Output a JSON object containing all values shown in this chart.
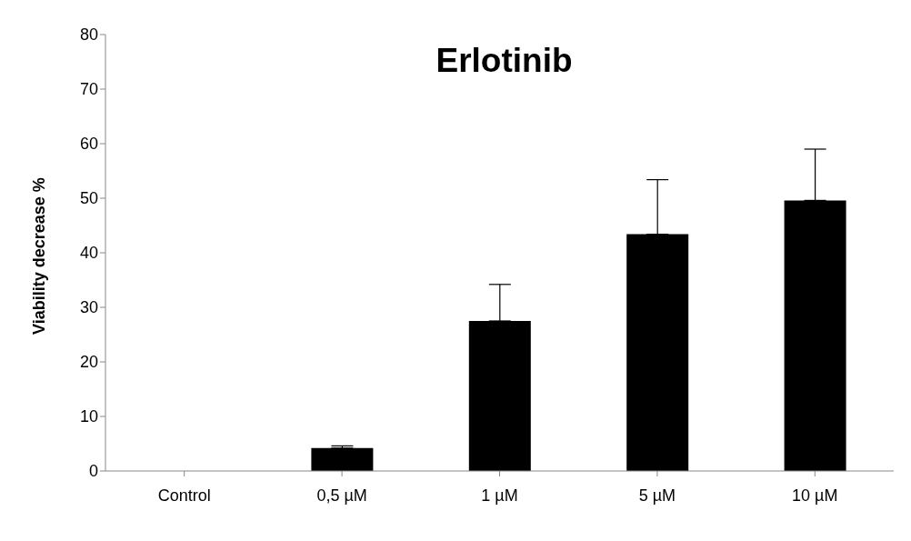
{
  "chart_data": {
    "type": "bar",
    "title": "Erlotinib",
    "ylabel": "Viability decrease %",
    "categories": [
      "Control",
      "0,5 µM",
      "1 µM",
      "5 µM",
      "10 µM"
    ],
    "values": [
      0,
      4.2,
      27.5,
      43.4,
      49.6
    ],
    "errors": [
      null,
      [
        4.2,
        4.6
      ],
      [
        27.5,
        34.2
      ],
      [
        43.4,
        53.4
      ],
      [
        49.6,
        59.0
      ]
    ],
    "color": "#000000",
    "ylim": [
      0,
      80
    ],
    "yticks": [
      0,
      10,
      20,
      30,
      40,
      50,
      60,
      70,
      80
    ],
    "grid": false,
    "legend": false
  }
}
